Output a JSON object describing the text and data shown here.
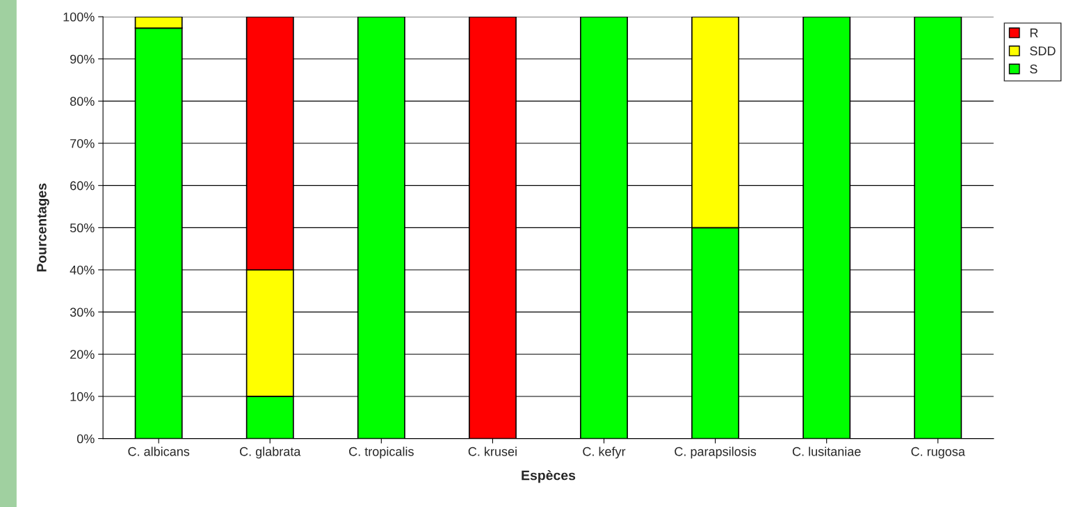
{
  "chart_data": {
    "type": "bar",
    "stacked": true,
    "xlabel": "Espèces",
    "ylabel": "Pourcentages",
    "categories": [
      "C. albicans",
      "C. glabrata",
      "C. tropicalis",
      "C. krusei",
      "C. kefyr",
      "C. parapsilosis",
      "C. lusitaniae",
      "C. rugosa"
    ],
    "series": [
      {
        "name": "S",
        "color": "#00ff00",
        "values": [
          97.3,
          10,
          100,
          null,
          100,
          50,
          100,
          100
        ]
      },
      {
        "name": "SDD",
        "color": "#ffff00",
        "values": [
          2.7,
          30,
          null,
          null,
          null,
          50,
          null,
          null
        ]
      },
      {
        "name": "R",
        "color": "#ff0000",
        "values": [
          null,
          60,
          null,
          100,
          null,
          null,
          null,
          null
        ]
      }
    ],
    "ylim": [
      0,
      100
    ],
    "yticks": [
      {
        "value": 0,
        "label": "0%"
      },
      {
        "value": 10,
        "label": "10%"
      },
      {
        "value": 20,
        "label": "20%"
      },
      {
        "value": 30,
        "label": "30%"
      },
      {
        "value": 40,
        "label": "40%"
      },
      {
        "value": 50,
        "label": "50%"
      },
      {
        "value": 60,
        "label": "60%"
      },
      {
        "value": 70,
        "label": "70%"
      },
      {
        "value": 80,
        "label": "80%"
      },
      {
        "value": 90,
        "label": "90%"
      },
      {
        "value": 100,
        "label": "100%"
      }
    ],
    "grid": "y",
    "legend": "top right"
  }
}
